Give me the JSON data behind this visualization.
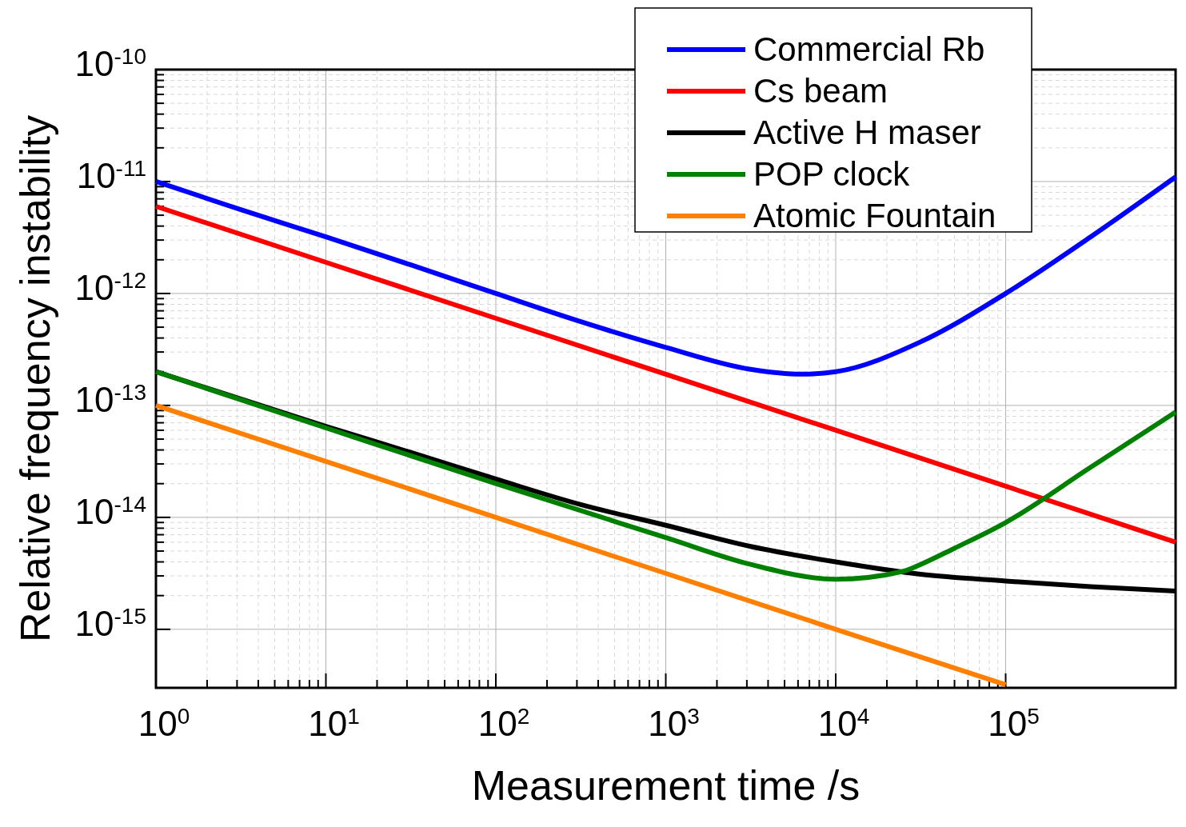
{
  "chart_data": {
    "type": "line",
    "xlabel": "Measurement time /s",
    "ylabel": "Relative frequency instability",
    "log": "xy",
    "grid": true,
    "legend": "top right",
    "line_style": "solid",
    "marker": "none",
    "xlim": [
      1,
      1000000
    ],
    "ylim": [
      3e-16,
      1e-10
    ],
    "xticks": [
      {
        "value": 1,
        "label": "10$^{0}$"
      },
      {
        "value": 2,
        "label": null
      },
      {
        "value": 3,
        "label": null
      },
      {
        "value": 4,
        "label": null
      },
      {
        "value": 5,
        "label": null
      },
      {
        "value": 6,
        "label": null
      },
      {
        "value": 7,
        "label": null
      },
      {
        "value": 8,
        "label": null
      },
      {
        "value": 9,
        "label": null
      },
      {
        "value": 10,
        "label": "10$^{1}$"
      },
      {
        "value": 20,
        "label": null
      },
      {
        "value": 30,
        "label": null
      },
      {
        "value": 40,
        "label": null
      },
      {
        "value": 50,
        "label": null
      },
      {
        "value": 60,
        "label": null
      },
      {
        "value": 70,
        "label": null
      },
      {
        "value": 80,
        "label": null
      },
      {
        "value": 90,
        "label": null
      },
      {
        "value": 100,
        "label": "10$^{2}$"
      },
      {
        "value": 200,
        "label": null
      },
      {
        "value": 300,
        "label": null
      },
      {
        "value": 400,
        "label": null
      },
      {
        "value": 500,
        "label": null
      },
      {
        "value": 600,
        "label": null
      },
      {
        "value": 700,
        "label": null
      },
      {
        "value": 800,
        "label": null
      },
      {
        "value": 900,
        "label": null
      },
      {
        "value": 1000,
        "label": "10$^{3}$"
      },
      {
        "value": 2000,
        "label": null
      },
      {
        "value": 3000,
        "label": null
      },
      {
        "value": 4000,
        "label": null
      },
      {
        "value": 5000,
        "label": null
      },
      {
        "value": 6000,
        "label": null
      },
      {
        "value": 7000,
        "label": null
      },
      {
        "value": 8000,
        "label": null
      },
      {
        "value": 9000,
        "label": null
      },
      {
        "value": 10000,
        "label": "10$^{4}$"
      },
      {
        "value": 20000,
        "label": null
      },
      {
        "value": 30000,
        "label": null
      },
      {
        "value": 40000,
        "label": null
      },
      {
        "value": 50000,
        "label": null
      },
      {
        "value": 60000,
        "label": null
      },
      {
        "value": 70000,
        "label": null
      },
      {
        "value": 80000,
        "label": null
      },
      {
        "value": 90000,
        "label": null
      },
      {
        "value": 100000,
        "label": "10$^{5}$"
      }
    ],
    "yticks": [
      {
        "value": 1e-15,
        "label": "10$^{-15}$"
      },
      {
        "value": 2e-15,
        "label": null
      },
      {
        "value": 3e-15,
        "label": null
      },
      {
        "value": 4e-15,
        "label": null
      },
      {
        "value": 5e-15,
        "label": null
      },
      {
        "value": 6e-15,
        "label": null
      },
      {
        "value": 7e-15,
        "label": null
      },
      {
        "value": 8e-15,
        "label": null
      },
      {
        "value": 9e-15,
        "label": null
      },
      {
        "value": 1e-14,
        "label": "10$^{-14}$"
      },
      {
        "value": 2e-14,
        "label": null
      },
      {
        "value": 3e-14,
        "label": null
      },
      {
        "value": 4e-14,
        "label": null
      },
      {
        "value": 5e-14,
        "label": null
      },
      {
        "value": 6e-14,
        "label": null
      },
      {
        "value": 7e-14,
        "label": null
      },
      {
        "value": 8e-14,
        "label": null
      },
      {
        "value": 9e-14,
        "label": null
      },
      {
        "value": 1e-13,
        "label": "10$^{-13}$"
      },
      {
        "value": 2e-13,
        "label": null
      },
      {
        "value": 3e-13,
        "label": null
      },
      {
        "value": 4e-13,
        "label": null
      },
      {
        "value": 5e-13,
        "label": null
      },
      {
        "value": 6e-13,
        "label": null
      },
      {
        "value": 7e-13,
        "label": null
      },
      {
        "value": 8e-13,
        "label": null
      },
      {
        "value": 9e-13,
        "label": null
      },
      {
        "value": 1e-12,
        "label": "10$^{-12}$"
      },
      {
        "value": 2e-12,
        "label": null
      },
      {
        "value": 3e-12,
        "label": null
      },
      {
        "value": 4e-12,
        "label": null
      },
      {
        "value": 5e-12,
        "label": null
      },
      {
        "value": 6e-12,
        "label": null
      },
      {
        "value": 7e-12,
        "label": null
      },
      {
        "value": 8e-12,
        "label": null
      },
      {
        "value": 9e-12,
        "label": null
      },
      {
        "value": 1e-11,
        "label": "10$^{-11}$"
      },
      {
        "value": 2e-11,
        "label": null
      },
      {
        "value": 3e-11,
        "label": null
      },
      {
        "value": 4e-11,
        "label": null
      },
      {
        "value": 5e-11,
        "label": null
      },
      {
        "value": 6e-11,
        "label": null
      },
      {
        "value": 7e-11,
        "label": null
      },
      {
        "value": 8e-11,
        "label": null
      },
      {
        "value": 9e-11,
        "label": null
      },
      {
        "value": 1e-10,
        "label": "10$^{-10}$"
      }
    ],
    "series": [
      {
        "name": "Commercial Rb",
        "color": "#0000ff",
        "x": [
          1,
          3.16,
          10,
          31.6,
          100,
          316,
          1000,
          3160,
          6300,
          10000,
          31600,
          100000,
          316000,
          1000000
        ],
        "values": [
          1e-11,
          5.6e-12,
          3.2e-12,
          1.8e-12,
          1e-12,
          5.6e-13,
          3.3e-13,
          2.1e-13,
          1.9e-13,
          2e-13,
          3.7e-13,
          1e-12,
          3.2e-12,
          1.1e-11
        ]
      },
      {
        "name": "Cs beam",
        "color": "#ff0000",
        "x": [
          1,
          100,
          10000,
          1000000
        ],
        "values": [
          6e-12,
          6e-13,
          6e-14,
          6e-15
        ]
      },
      {
        "name": "Active H maser",
        "color": "#000000",
        "x": [
          1,
          10,
          31.6,
          100,
          316,
          1000,
          3160,
          10000,
          31600,
          100000,
          316000,
          1000000
        ],
        "values": [
          2e-13,
          6.5e-14,
          3.8e-14,
          2.2e-14,
          1.3e-14,
          8.5e-15,
          5.5e-15,
          4e-15,
          3.1e-15,
          2.7e-15,
          2.4e-15,
          2.2e-15
        ]
      },
      {
        "name": "POP clock",
        "color": "#008000",
        "x": [
          1,
          10,
          100,
          1000,
          3160,
          10000,
          25000,
          31600,
          50000,
          100000,
          316000,
          1000000
        ],
        "values": [
          2e-13,
          6.3e-14,
          2e-14,
          6.6e-15,
          3.8e-15,
          2.8e-15,
          3.3e-15,
          3.8e-15,
          5.3e-15,
          9e-15,
          2.8e-14,
          8.7e-14
        ]
      },
      {
        "name": "Atomic Fountain",
        "color": "#ff8000",
        "x": [
          1,
          100,
          10000,
          100000
        ],
        "values": [
          1e-13,
          1e-14,
          1e-15,
          3.2e-16
        ]
      }
    ]
  }
}
